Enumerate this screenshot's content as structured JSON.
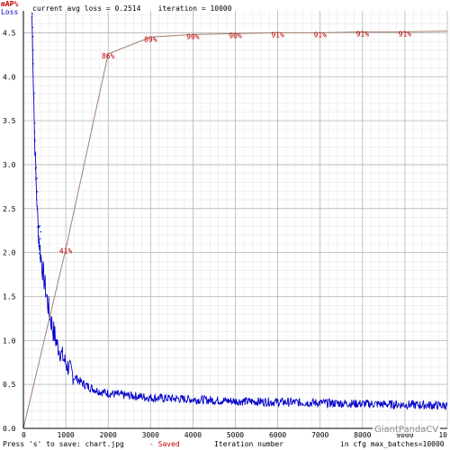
{
  "header": {
    "legend_map": "mAP%",
    "legend_loss": "Loss",
    "status": "current avg loss = 0.2514    iteration = 10000",
    "map_color": "#c00000",
    "loss_color": "#0000c8"
  },
  "footer": {
    "save_hint": "Press 's' to save: chart.jpg",
    "saved_label": "- Saved",
    "xlabel": "Iteration number",
    "cfg_info": "in cfg max_batches=10000",
    "watermark": "GiantPandaCV"
  },
  "chart_data": {
    "type": "line",
    "title": "current avg loss = 0.2514    iteration = 10000",
    "xlabel": "Iteration number",
    "ylabel": "",
    "xlim": [
      0,
      10000
    ],
    "ylim": [
      0,
      4.75
    ],
    "grid": true,
    "legend": "top-left",
    "x_ticks": [
      "0",
      "1000",
      "2000",
      "3000",
      "4000",
      "5000",
      "6000",
      "7000",
      "8000",
      "9000",
      "10"
    ],
    "y_ticks": [
      "0.0",
      "0.5",
      "1.0",
      "1.5",
      "2.0",
      "2.5",
      "3.0",
      "3.5",
      "4.0",
      "4.5"
    ],
    "series": [
      {
        "name": "mAP%",
        "color": "#c00000",
        "line_color": "#a08070",
        "x": [
          0,
          1000,
          2000,
          3000,
          4000,
          5000,
          6000,
          7000,
          8000,
          9000,
          10000
        ],
        "map_percent": [
          0,
          41,
          86,
          89,
          90,
          90,
          91,
          91,
          91,
          91,
          91
        ],
        "loss_axis_value": [
          0,
          2.04,
          4.26,
          4.45,
          4.48,
          4.49,
          4.5,
          4.5,
          4.51,
          4.51,
          4.52
        ],
        "labels": [
          "",
          "41%",
          "86%",
          "89%",
          "90%",
          "90%",
          "91%",
          "91%",
          "91%",
          "91%",
          ""
        ]
      },
      {
        "name": "Loss",
        "color": "#0000c8",
        "x": [
          200,
          230,
          260,
          300,
          350,
          400,
          450,
          500,
          600,
          700,
          800,
          900,
          1000,
          1100,
          1200,
          1400,
          1600,
          1800,
          2000,
          2300,
          2600,
          3000,
          3500,
          4000,
          4500,
          5000,
          6000,
          7000,
          8000,
          9000,
          10000
        ],
        "y": [
          4.7,
          4.1,
          3.4,
          2.8,
          2.25,
          2.0,
          1.82,
          1.65,
          1.35,
          1.12,
          0.95,
          0.84,
          0.74,
          0.66,
          0.59,
          0.51,
          0.46,
          0.42,
          0.4,
          0.38,
          0.37,
          0.35,
          0.34,
          0.33,
          0.32,
          0.31,
          0.3,
          0.29,
          0.28,
          0.27,
          0.26
        ]
      }
    ]
  }
}
